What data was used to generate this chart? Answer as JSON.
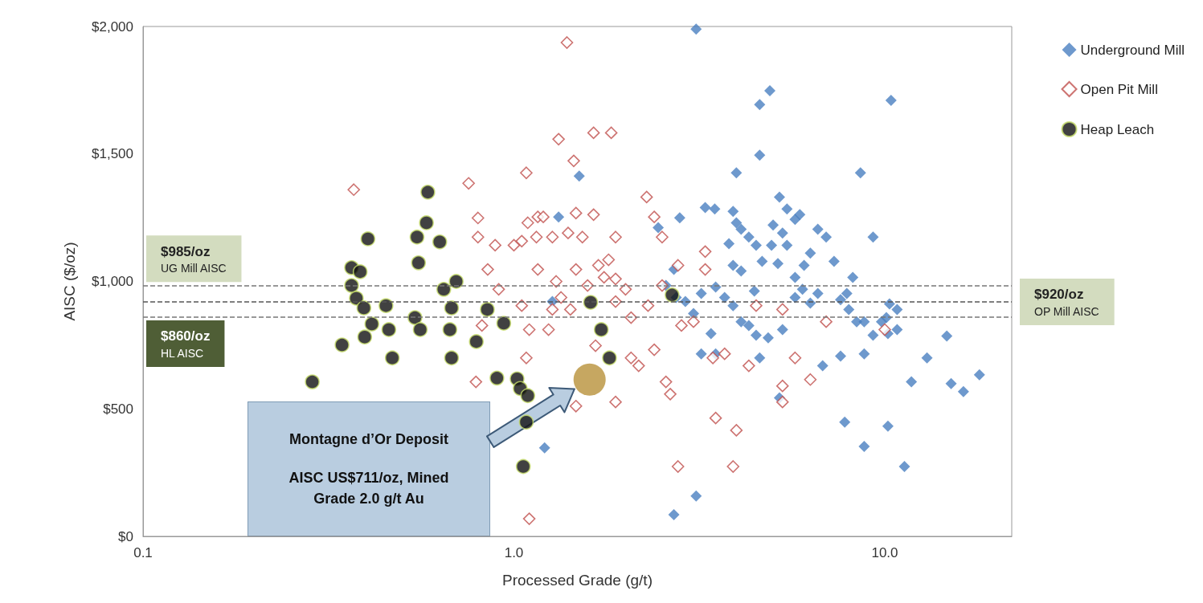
{
  "chart_data": {
    "type": "scatter",
    "xlabel": "Processed Grade (g/t)",
    "ylabel": "AISC ($/oz)",
    "log": "x",
    "xlim": [
      0.1,
      22
    ],
    "ylim": [
      0,
      2000
    ],
    "xticks": [
      {
        "value": 0.1,
        "label": "0.1"
      },
      {
        "value": 1,
        "label": "1.0"
      },
      {
        "value": 10,
        "label": "10.0"
      }
    ],
    "yticks": [
      {
        "value": 0,
        "label": "$0"
      },
      {
        "value": 500,
        "label": "$500"
      },
      {
        "value": 1000,
        "label": "$1,000"
      },
      {
        "value": 1500,
        "label": "$1,500"
      },
      {
        "value": 2000,
        "label": "$2,000"
      }
    ],
    "legend": "top right",
    "series": [
      {
        "name": "Underground Mill",
        "color": "#4a7fc1",
        "marker": "diamond",
        "x": [
          3.1,
          4.9,
          4.6,
          4.6,
          3.98,
          10.4,
          8.6,
          9.3,
          1.5,
          1.32,
          2.8,
          3.28,
          3.48,
          3.9,
          3.98,
          4.1,
          3.8,
          3.9,
          4.1,
          4.3,
          4.5,
          4.67,
          5.2,
          5.45,
          5.0,
          5.3,
          5.73,
          5.9,
          4.95,
          4.45,
          5.15,
          5.45,
          6.3,
          6.6,
          6.95,
          7.3,
          5.73,
          6.0,
          6.3,
          6.6,
          6.06,
          8.0,
          8.2,
          7.9,
          7.6,
          8.4,
          8.8,
          9.8,
          10.1,
          10.3,
          10.8,
          10.8,
          10.2,
          9.3,
          8.8,
          7.6,
          6.8,
          5.73,
          5.3,
          4.85,
          4.6,
          4.5,
          4.3,
          4.1,
          3.9,
          3.7,
          3.5,
          3.2,
          3.05,
          2.9,
          2.74,
          2.7,
          2.57,
          2.45,
          3.5,
          3.4,
          3.2,
          5.2,
          7.8,
          8.8,
          10.2,
          11.3,
          11.8,
          13.0,
          14.7,
          15.1,
          16.3,
          18.0,
          3.1,
          2.7,
          1.21,
          1.27
        ],
        "values": [
          1990,
          1748,
          1694,
          1495,
          1426,
          1710,
          1426,
          1174,
          1413,
          1253,
          1250,
          1290,
          1284,
          1275,
          1230,
          1205,
          1148,
          1063,
          1041,
          1174,
          1142,
          1079,
          1331,
          1284,
          1221,
          1190,
          1243,
          1262,
          1142,
          962,
          1070,
          1142,
          1111,
          1205,
          1174,
          1079,
          1016,
          969,
          915,
          953,
          1063,
          890,
          1016,
          953,
          928,
          842,
          842,
          842,
          858,
          912,
          890,
          811,
          795,
          789,
          716,
          707,
          669,
          937,
          811,
          779,
          700,
          789,
          827,
          842,
          905,
          937,
          978,
          953,
          874,
          921,
          937,
          1047,
          984,
          1211,
          716,
          795,
          716,
          543,
          448,
          353,
          432,
          274,
          606,
          700,
          786,
          599,
          568,
          634,
          158,
          85,
          347,
          921
        ]
      },
      {
        "name": "Open Pit Mill",
        "color": "#c0504d",
        "marker": "diamond",
        "x": [
          1.39,
          0.37,
          0.755,
          0.8,
          0.8,
          0.85,
          0.89,
          0.91,
          0.82,
          0.8,
          0.79,
          1.0,
          1.05,
          1.09,
          1.08,
          1.16,
          1.15,
          1.16,
          1.05,
          1.08,
          1.1,
          1.1,
          1.2,
          1.27,
          1.32,
          1.45,
          1.64,
          1.83,
          1.47,
          1.53,
          1.64,
          1.4,
          1.3,
          1.34,
          1.42,
          1.47,
          1.58,
          1.69,
          1.75,
          1.8,
          1.88,
          1.88,
          1.66,
          1.47,
          1.24,
          1.27,
          1.88,
          2.17,
          2.07,
          2.07,
          2.28,
          2.39,
          2.51,
          2.77,
          2.51,
          2.3,
          2.39,
          2.57,
          2.64,
          2.77,
          2.83,
          3.05,
          3.28,
          3.28,
          3.44,
          3.5,
          3.98,
          3.9,
          4.3,
          4.5,
          3.7,
          5.3,
          5.3,
          5.3,
          5.73,
          6.3,
          6.95,
          10.0,
          1.88,
          2.0
        ],
        "values": [
          1937,
          1360,
          1385,
          1249,
          1174,
          1047,
          1142,
          969,
          827,
          null,
          606,
          1142,
          1158,
          1230,
          1426,
          1253,
          1174,
          1047,
          905,
          700,
          69,
          811,
          1253,
          1174,
          1558,
          1473,
          1583,
          1583,
          1268,
          1174,
          1262,
          1190,
          1000,
          937,
          890,
          1047,
          984,
          1063,
          1016,
          1085,
          1174,
          921,
          748,
          511,
          811,
          890,
          527,
          669,
          700,
          858,
          1331,
          1253,
          1174,
          1063,
          984,
          905,
          732,
          606,
          558,
          274,
          827,
          842,
          1117,
          1047,
          700,
          464,
          416,
          274,
          669,
          905,
          716,
          890,
          590,
          527,
          700,
          615,
          842,
          811,
          1010,
          969
        ]
      },
      {
        "name": "Heap Leach",
        "color": "#111111",
        "marker": "circle",
        "x": [
          0.286,
          0.344,
          0.365,
          0.365,
          0.376,
          0.385,
          0.394,
          0.396,
          0.404,
          0.414,
          0.452,
          0.46,
          0.47,
          0.541,
          0.548,
          0.553,
          0.559,
          0.581,
          0.586,
          0.631,
          0.647,
          0.672,
          0.679,
          0.679,
          0.699,
          0.792,
          0.848,
          0.9,
          0.939,
          1.02,
          1.04,
          1.09,
          1.08,
          1.06,
          1.61,
          1.72,
          1.81,
          2.67
        ],
        "values": [
          606,
          751,
          1054,
          984,
          934,
          1038,
          896,
          782,
          1167,
          833,
          905,
          811,
          700,
          858,
          1174,
          1073,
          811,
          1230,
          1350,
          1155,
          969,
          811,
          700,
          896,
          1000,
          764,
          890,
          621,
          836,
          618,
          580,
          552,
          448,
          274,
          918,
          811,
          700,
          947
        ]
      },
      {
        "color": "#b8913a",
        "marker": "circle",
        "x": [
          1.6
        ],
        "values": [
          615
        ]
      }
    ],
    "ref_lines": [
      {
        "axis": "y",
        "value": 985,
        "label": "$985/oz\nUG Mill AISC",
        "color": "#777777",
        "line_style": "dashed"
      },
      {
        "axis": "y",
        "value": 920,
        "label": "$920/oz\nOP Mill AISC",
        "color": "#555555",
        "line_style": "dashed"
      },
      {
        "axis": "y",
        "value": 860,
        "label": "$860/oz\nHL AISC",
        "color": "#777777",
        "line_style": "dashed"
      }
    ],
    "annotations": [
      "Montagne d’Or Deposit",
      "AISC US$711/oz, Mined Grade 2.0 g/t Au"
    ]
  }
}
